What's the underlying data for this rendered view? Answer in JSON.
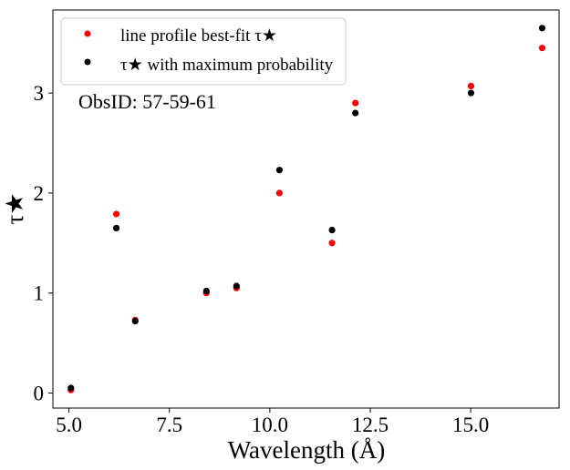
{
  "chart_data": {
    "type": "scatter",
    "xlabel": "Wavelength (Å)",
    "ylabel": "τ★",
    "xlim": [
      4.6,
      17.2
    ],
    "ylim": [
      -0.15,
      3.83
    ],
    "xticks": [
      5.0,
      7.5,
      10.0,
      12.5,
      15.0
    ],
    "xtick_labels": [
      "5.0",
      "7.5",
      "10.0",
      "12.5",
      "15.0"
    ],
    "yticks": [
      0,
      1,
      2,
      3
    ],
    "ytick_labels": [
      "0",
      "1",
      "2",
      "3"
    ],
    "grid": false,
    "legend_position": "top-left",
    "annotation": "ObsID: 57-59-61",
    "series": [
      {
        "name": "line profile best-fit τ★",
        "color": "#ff0000",
        "x": [
          5.05,
          6.18,
          6.65,
          8.42,
          9.17,
          10.24,
          11.55,
          12.13,
          15.01,
          16.78
        ],
        "y": [
          0.03,
          1.79,
          0.73,
          1.0,
          1.05,
          2.0,
          1.5,
          2.9,
          3.07,
          3.45
        ]
      },
      {
        "name": "τ★ with maximum probability",
        "color": "#000000",
        "x": [
          5.05,
          6.18,
          6.65,
          8.42,
          9.17,
          10.24,
          11.55,
          12.13,
          15.01,
          16.78
        ],
        "y": [
          0.05,
          1.65,
          0.72,
          1.02,
          1.07,
          2.23,
          1.63,
          2.8,
          3.0,
          3.65
        ]
      }
    ]
  }
}
